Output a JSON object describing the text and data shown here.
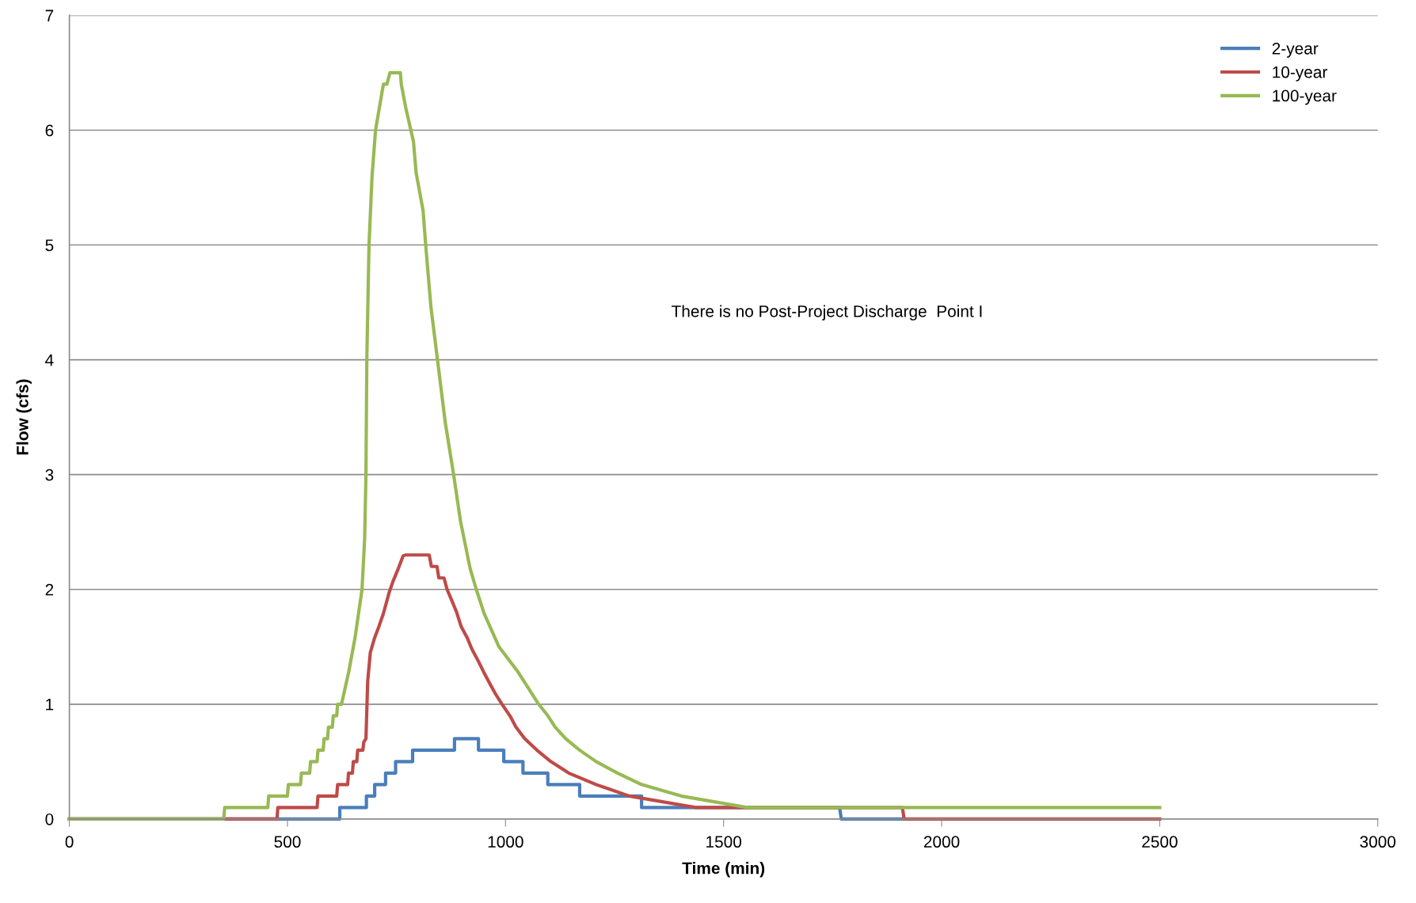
{
  "chart_data": {
    "type": "line",
    "xlabel": "Time (min)",
    "ylabel": "Flow (cfs)",
    "xlim": [
      0,
      3000
    ],
    "xticks": [
      0,
      500,
      1000,
      1500,
      2000,
      2500,
      3000
    ],
    "ylim": [
      0,
      7
    ],
    "yticks": [
      0,
      1,
      2,
      3,
      4,
      5,
      6,
      7
    ],
    "grid": "y",
    "legend": "top right",
    "marker": "none",
    "line_style": "solid",
    "annotations": [
      "There is no Post-Project Discharge  Point I"
    ],
    "series": [
      {
        "name": "2-year",
        "color": "#4a7ebb",
        "x": [
          0,
          620,
          620,
          681,
          681,
          700,
          700,
          725,
          725,
          748,
          748,
          787,
          787,
          883,
          883,
          938,
          938,
          996,
          996,
          1040,
          1040,
          1097,
          1097,
          1170,
          1170,
          1312,
          1312,
          1766,
          1770,
          1912
        ],
        "values": [
          0,
          0,
          0.1,
          0.1,
          0.2,
          0.2,
          0.3,
          0.3,
          0.4,
          0.4,
          0.5,
          0.5,
          0.6,
          0.6,
          0.7,
          0.7,
          0.6,
          0.6,
          0.5,
          0.5,
          0.4,
          0.4,
          0.3,
          0.3,
          0.2,
          0.2,
          0.1,
          0.1,
          0,
          0
        ]
      },
      {
        "name": "10-year",
        "color": "#be4b48",
        "x": [
          0,
          476,
          478,
          568,
          570,
          613,
          615,
          638,
          640,
          649,
          651,
          659,
          661,
          673,
          675,
          680,
          684,
          690,
          700,
          710,
          720,
          733,
          742,
          754,
          765,
          770,
          825,
          830,
          843,
          847,
          859,
          866,
          875,
          888,
          898,
          912,
          923,
          937,
          950,
          964,
          977,
          992,
          1010,
          1024,
          1044,
          1072,
          1104,
          1145,
          1208,
          1284,
          1437,
          1910,
          1914,
          2500
        ],
        "values": [
          0,
          0,
          0.1,
          0.1,
          0.2,
          0.2,
          0.3,
          0.3,
          0.4,
          0.4,
          0.5,
          0.5,
          0.6,
          0.6,
          0.67,
          0.7,
          1.2,
          1.45,
          1.58,
          1.68,
          1.79,
          1.97,
          2.07,
          2.18,
          2.29,
          2.3,
          2.3,
          2.2,
          2.2,
          2.1,
          2.1,
          2.0,
          1.92,
          1.8,
          1.68,
          1.58,
          1.48,
          1.38,
          1.28,
          1.18,
          1.09,
          1.0,
          0.9,
          0.8,
          0.7,
          0.6,
          0.5,
          0.4,
          0.3,
          0.2,
          0.1,
          0.1,
          0,
          0
        ]
      },
      {
        "name": "100-year",
        "color": "#98b954",
        "x": [
          0,
          354,
          356,
          455,
          457,
          500,
          502,
          530,
          532,
          551,
          553,
          568,
          570,
          582,
          584,
          592,
          594,
          603,
          605,
          613,
          615,
          624,
          641,
          655,
          671,
          677,
          680,
          682,
          687,
          694,
          702,
          720,
          728,
          735,
          759,
          761,
          771,
          789,
          795,
          811,
          817,
          829,
          844,
          862,
          881,
          897,
          919,
          933,
          951,
          985,
          1027,
          1076,
          1097,
          1114,
          1138,
          1170,
          1208,
          1257,
          1312,
          1403,
          1555,
          2500
        ],
        "values": [
          0,
          0,
          0.1,
          0.1,
          0.2,
          0.2,
          0.3,
          0.3,
          0.4,
          0.4,
          0.5,
          0.5,
          0.6,
          0.6,
          0.7,
          0.7,
          0.8,
          0.8,
          0.9,
          0.9,
          1.0,
          1.0,
          1.29,
          1.58,
          2.0,
          2.44,
          3.0,
          4.0,
          5.0,
          5.6,
          6.0,
          6.4,
          6.4,
          6.5,
          6.5,
          6.4,
          6.2,
          5.9,
          5.63,
          5.3,
          5.0,
          4.46,
          4.0,
          3.45,
          3.0,
          2.59,
          2.18,
          2.0,
          1.79,
          1.5,
          1.29,
          1.0,
          0.9,
          0.8,
          0.7,
          0.6,
          0.5,
          0.4,
          0.3,
          0.2,
          0.1,
          0.1
        ]
      }
    ]
  }
}
